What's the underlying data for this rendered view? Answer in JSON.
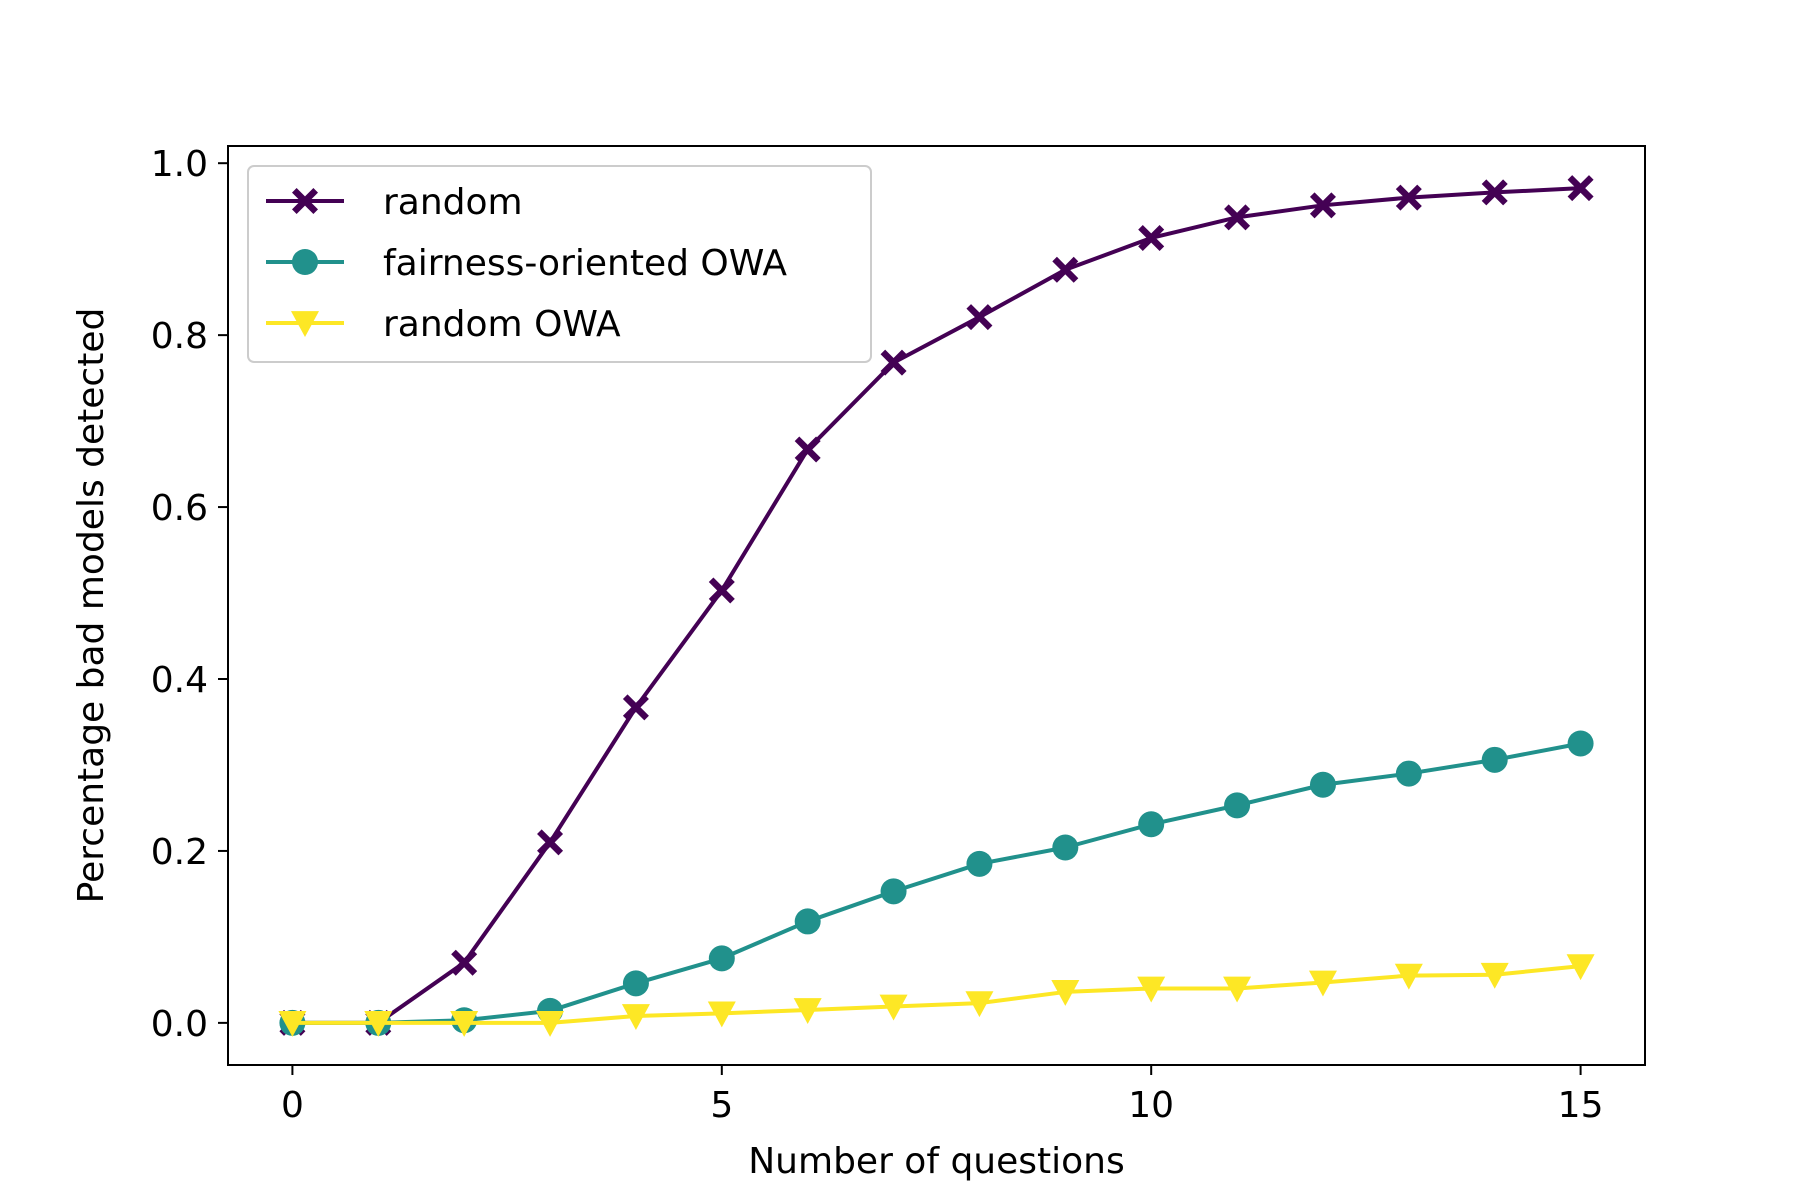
{
  "chart_data": {
    "type": "line",
    "title": "",
    "xlabel": "Number of questions",
    "ylabel": "Percentage bad models detected",
    "xlim": [
      -0.75,
      15.75
    ],
    "ylim": [
      -0.049,
      1.02
    ],
    "xticks": [
      0,
      5,
      10,
      15
    ],
    "xtick_labels": [
      "0",
      "5",
      "10",
      "15"
    ],
    "yticks": [
      0.0,
      0.2,
      0.4,
      0.6,
      0.8,
      1.0
    ],
    "ytick_labels": [
      "0.0",
      "0.2",
      "0.4",
      "0.6",
      "0.8",
      "1.0"
    ],
    "grid": false,
    "legend_position": "top-left",
    "x": [
      0,
      1,
      2,
      3,
      4,
      5,
      6,
      7,
      8,
      9,
      10,
      11,
      12,
      13,
      14,
      15
    ],
    "series": [
      {
        "name": "random",
        "color": "#440154",
        "marker": "x-filled",
        "values": [
          0.0,
          0.0,
          0.07,
          0.21,
          0.367,
          0.503,
          0.667,
          0.768,
          0.821,
          0.876,
          0.913,
          0.937,
          0.951,
          0.96,
          0.966,
          0.971
        ]
      },
      {
        "name": "fairness-oriented OWA",
        "color": "#21918c",
        "marker": "circle",
        "values": [
          0.0,
          0.0,
          0.003,
          0.014,
          0.046,
          0.075,
          0.118,
          0.153,
          0.185,
          0.204,
          0.231,
          0.253,
          0.277,
          0.29,
          0.306,
          0.325
        ]
      },
      {
        "name": "random OWA",
        "color": "#fde725",
        "marker": "triangle-down",
        "values": [
          0.0,
          0.0,
          0.0,
          0.0,
          0.008,
          0.011,
          0.015,
          0.019,
          0.023,
          0.036,
          0.04,
          0.04,
          0.047,
          0.055,
          0.056,
          0.066
        ]
      }
    ]
  }
}
